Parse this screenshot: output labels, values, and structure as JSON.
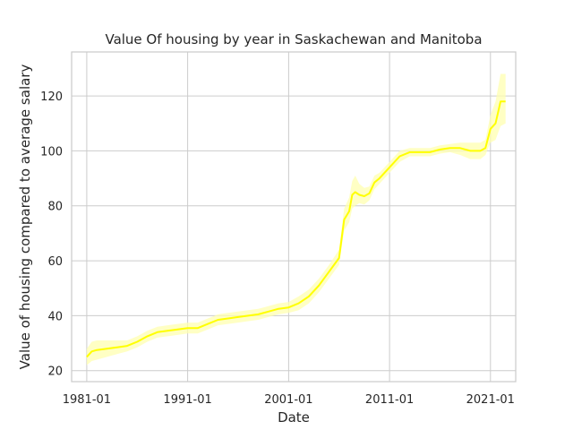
{
  "chart_data": {
    "type": "line",
    "title": "Value Of housing by year in Saskachewan and Manitoba",
    "xlabel": "Date",
    "ylabel": "Value of housing compared to average salary",
    "x_tick_labels": [
      "1981-01",
      "1991-01",
      "2001-01",
      "2011-01",
      "2021-01"
    ],
    "x_tick_years": [
      1981,
      1991,
      2001,
      2011,
      2021
    ],
    "y_ticks": [
      20,
      40,
      60,
      80,
      100,
      120
    ],
    "xlim": [
      1979.5,
      2023.5
    ],
    "ylim": [
      16,
      136
    ],
    "grid": true,
    "line_color": "#ffff00",
    "band_color": "#ffffb0",
    "series": [
      {
        "x": [
          1981.0,
          1981.5,
          1982.0,
          1983.0,
          1984.0,
          1985.0,
          1986.0,
          1987.0,
          1988.0,
          1989.0,
          1990.0,
          1991.0,
          1992.0,
          1993.0,
          1994.0,
          1995.0,
          1996.0,
          1997.0,
          1998.0,
          1999.0,
          2000.0,
          2001.0,
          2002.0,
          2003.0,
          2004.0,
          2005.0,
          2006.0,
          2006.5,
          2007.0,
          2007.3,
          2007.6,
          2008.0,
          2008.5,
          2009.0,
          2009.5,
          2010.0,
          2011.0,
          2012.0,
          2013.0,
          2014.0,
          2015.0,
          2016.0,
          2017.0,
          2018.0,
          2019.0,
          2020.0,
          2020.5,
          2021.0,
          2021.5,
          2022.0,
          2022.5
        ],
        "values": [
          25,
          27,
          27.5,
          28,
          28.5,
          29,
          30.5,
          32.5,
          34,
          34.5,
          35,
          35.5,
          35.5,
          37,
          38.5,
          39,
          39.5,
          40,
          40.5,
          41.5,
          42.5,
          43,
          44.5,
          47,
          51,
          56,
          61,
          75,
          78,
          84,
          85,
          84,
          83.5,
          84.5,
          88.5,
          90,
          94,
          98,
          99.5,
          99.5,
          99.5,
          100.5,
          101,
          101,
          100,
          100,
          101,
          108,
          110,
          118,
          118
        ],
        "lower": [
          22,
          23.5,
          24,
          25,
          26,
          27,
          28.5,
          30.5,
          32,
          32.5,
          33,
          33.5,
          33.5,
          35,
          36.5,
          37,
          37.5,
          38,
          38.5,
          39.5,
          40.5,
          41,
          42,
          44.5,
          48.5,
          53.5,
          58.5,
          71,
          74,
          79,
          80,
          81,
          80.5,
          82,
          86,
          88,
          92,
          96,
          98,
          98,
          98,
          99,
          99.5,
          98.5,
          97,
          97,
          98.5,
          103,
          104,
          109,
          110
        ],
        "upper": [
          28,
          30.5,
          31,
          31,
          31,
          31,
          32.5,
          34.5,
          36,
          36.5,
          37,
          37.5,
          37.5,
          39,
          40.5,
          41,
          41.5,
          42,
          42.5,
          43.5,
          44.5,
          45,
          47,
          49.5,
          53.5,
          58.5,
          64,
          79,
          83,
          89,
          91,
          88,
          86.5,
          87,
          91,
          92,
          96,
          100,
          101,
          101,
          101,
          102,
          102.5,
          103,
          103,
          103,
          104,
          113,
          118,
          128,
          128
        ]
      }
    ]
  }
}
